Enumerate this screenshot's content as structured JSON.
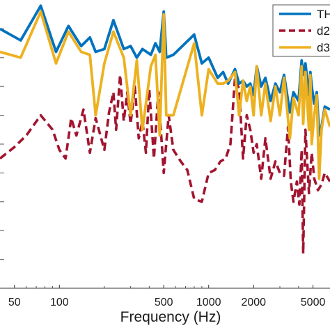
{
  "chart_data": {
    "type": "line",
    "title": "",
    "xlabel": "Frequency (Hz)",
    "ylabel": "",
    "x_scale": "log",
    "xlim": [
      40,
      6500
    ],
    "ylim": [
      0,
      100
    ],
    "x_ticks": [
      {
        "value": 50,
        "label": "50"
      },
      {
        "value": 100,
        "label": "100"
      },
      {
        "value": 500,
        "label": "500"
      },
      {
        "value": 1000,
        "label": "1000"
      },
      {
        "value": 2000,
        "label": "2000"
      },
      {
        "value": 5000,
        "label": "5000"
      }
    ],
    "grid": false,
    "legend": {
      "placement": "top-right"
    },
    "series": [
      {
        "name": "TH",
        "color": "#0072bd",
        "style": "solid",
        "points": [
          [
            40,
            90
          ],
          [
            55,
            86
          ],
          [
            75,
            98
          ],
          [
            95,
            82
          ],
          [
            115,
            91
          ],
          [
            140,
            84
          ],
          [
            160,
            87
          ],
          [
            175,
            82
          ],
          [
            200,
            83
          ],
          [
            230,
            93
          ],
          [
            270,
            83
          ],
          [
            300,
            84
          ],
          [
            330,
            80
          ],
          [
            360,
            83
          ],
          [
            410,
            81
          ],
          [
            440,
            85
          ],
          [
            470,
            82
          ],
          [
            500,
            96
          ],
          [
            520,
            80
          ],
          [
            580,
            81
          ],
          [
            800,
            88
          ],
          [
            900,
            78
          ],
          [
            1000,
            80
          ],
          [
            1150,
            73
          ],
          [
            1250,
            75
          ],
          [
            1350,
            71
          ],
          [
            1500,
            76
          ],
          [
            1600,
            71
          ],
          [
            1700,
            72
          ],
          [
            1800,
            70
          ],
          [
            1900,
            71
          ],
          [
            2000,
            67
          ],
          [
            2100,
            77
          ],
          [
            2250,
            70
          ],
          [
            2400,
            73
          ],
          [
            2600,
            65
          ],
          [
            2800,
            71
          ],
          [
            3000,
            68
          ],
          [
            3200,
            74
          ],
          [
            3500,
            61
          ],
          [
            3700,
            68
          ],
          [
            4000,
            65
          ],
          [
            4200,
            79
          ],
          [
            4300,
            74
          ],
          [
            4450,
            78
          ],
          [
            4700,
            67
          ],
          [
            4800,
            75
          ],
          [
            4900,
            70
          ],
          [
            5100,
            64
          ],
          [
            5300,
            68
          ],
          [
            5500,
            53
          ],
          [
            5700,
            56
          ],
          [
            6000,
            63
          ],
          [
            6500,
            62
          ]
        ]
      },
      {
        "name": "d2",
        "color": "#a2142f",
        "style": "dashed",
        "points": [
          [
            40,
            45
          ],
          [
            50,
            49
          ],
          [
            60,
            53
          ],
          [
            75,
            60
          ],
          [
            90,
            55
          ],
          [
            100,
            48
          ],
          [
            110,
            45
          ],
          [
            120,
            59
          ],
          [
            130,
            53
          ],
          [
            145,
            62
          ],
          [
            160,
            47
          ],
          [
            175,
            59
          ],
          [
            200,
            48
          ],
          [
            215,
            61
          ],
          [
            230,
            68
          ],
          [
            240,
            55
          ],
          [
            255,
            74
          ],
          [
            270,
            58
          ],
          [
            285,
            68
          ],
          [
            300,
            57
          ],
          [
            320,
            70
          ],
          [
            340,
            52
          ],
          [
            360,
            58
          ],
          [
            380,
            47
          ],
          [
            400,
            69
          ],
          [
            430,
            45
          ],
          [
            460,
            68
          ],
          [
            500,
            40
          ],
          [
            540,
            60
          ],
          [
            580,
            48
          ],
          [
            650,
            44
          ],
          [
            720,
            41
          ],
          [
            800,
            31
          ],
          [
            900,
            30
          ],
          [
            1000,
            40
          ],
          [
            1100,
            41
          ],
          [
            1200,
            44
          ],
          [
            1300,
            45
          ],
          [
            1400,
            50
          ],
          [
            1500,
            73
          ],
          [
            1600,
            69
          ],
          [
            1700,
            45
          ],
          [
            1800,
            60
          ],
          [
            1900,
            55
          ],
          [
            2000,
            47
          ],
          [
            2100,
            50
          ],
          [
            2250,
            38
          ],
          [
            2400,
            52
          ],
          [
            2600,
            38
          ],
          [
            2800,
            44
          ],
          [
            3000,
            40
          ],
          [
            3200,
            39
          ],
          [
            3400,
            56
          ],
          [
            3550,
            37
          ],
          [
            3700,
            30
          ],
          [
            3900,
            37
          ],
          [
            4050,
            29
          ],
          [
            4200,
            48
          ],
          [
            4300,
            12
          ],
          [
            4450,
            55
          ],
          [
            4700,
            33
          ],
          [
            4900,
            47
          ],
          [
            5100,
            38
          ],
          [
            5400,
            34
          ],
          [
            5700,
            36
          ],
          [
            6000,
            40
          ],
          [
            6500,
            37
          ]
        ]
      },
      {
        "name": "d3",
        "color": "#edb120",
        "style": "solid",
        "points": [
          [
            40,
            82
          ],
          [
            55,
            80
          ],
          [
            75,
            96
          ],
          [
            95,
            78
          ],
          [
            115,
            89
          ],
          [
            140,
            82
          ],
          [
            160,
            81
          ],
          [
            175,
            60
          ],
          [
            200,
            78
          ],
          [
            230,
            89
          ],
          [
            270,
            80
          ],
          [
            300,
            60
          ],
          [
            330,
            79
          ],
          [
            360,
            55
          ],
          [
            410,
            77
          ],
          [
            440,
            81
          ],
          [
            470,
            53
          ],
          [
            500,
            95
          ],
          [
            520,
            60
          ],
          [
            580,
            60
          ],
          [
            800,
            85
          ],
          [
            900,
            60
          ],
          [
            1000,
            76
          ],
          [
            1150,
            71
          ],
          [
            1250,
            71
          ],
          [
            1350,
            72
          ],
          [
            1500,
            75
          ],
          [
            1600,
            60
          ],
          [
            1700,
            72
          ],
          [
            1800,
            65
          ],
          [
            1900,
            70
          ],
          [
            2000,
            60
          ],
          [
            2100,
            77
          ],
          [
            2250,
            60
          ],
          [
            2400,
            71
          ],
          [
            2600,
            58
          ],
          [
            2800,
            70
          ],
          [
            3000,
            60
          ],
          [
            3200,
            73
          ],
          [
            3500,
            52
          ],
          [
            3700,
            66
          ],
          [
            4000,
            60
          ],
          [
            4200,
            77
          ],
          [
            4300,
            57
          ],
          [
            4450,
            75
          ],
          [
            4700,
            55
          ],
          [
            4800,
            74
          ],
          [
            4900,
            50
          ],
          [
            5100,
            60
          ],
          [
            5300,
            67
          ],
          [
            5500,
            38
          ],
          [
            5700,
            55
          ],
          [
            6000,
            62
          ],
          [
            6500,
            56
          ]
        ]
      }
    ]
  },
  "legend_items": [
    {
      "label": "TH",
      "color": "#0072bd",
      "style": "solid"
    },
    {
      "label": "d2",
      "color": "#a2142f",
      "style": "dashed"
    },
    {
      "label": "d3",
      "color": "#edb120",
      "style": "solid"
    }
  ]
}
